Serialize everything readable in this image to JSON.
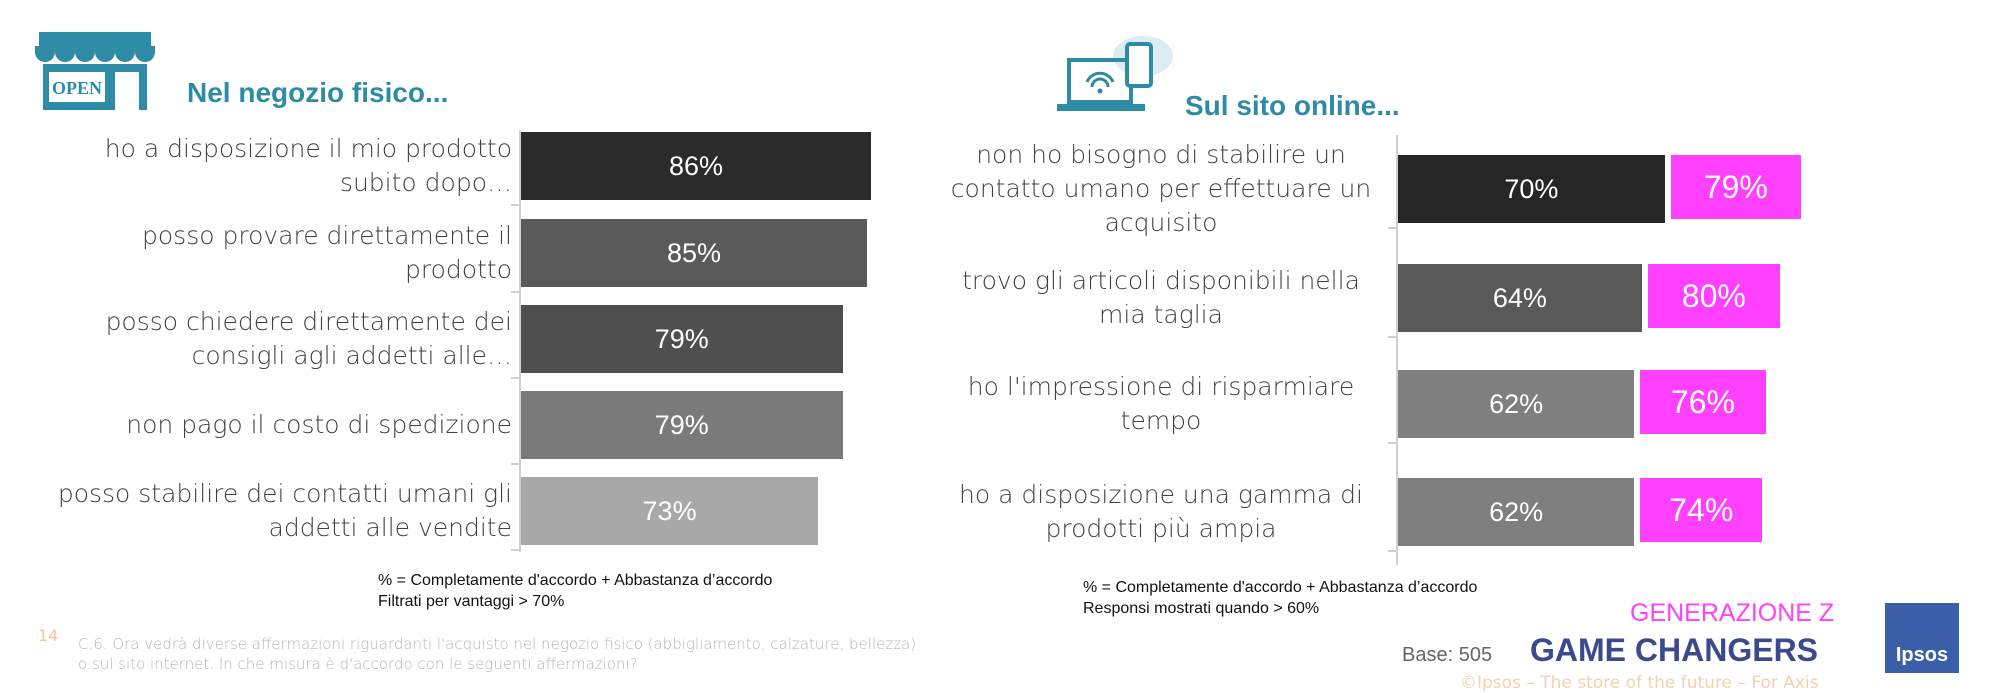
{
  "chart_data": [
    {
      "type": "bar",
      "orientation": "horizontal",
      "title": "Nel negozio fisico...",
      "categories": [
        "ho a disposizione il mio prodotto subito dopo…",
        "posso provare direttamente il prodotto",
        "posso chiedere direttamente dei consigli agli addetti alle…",
        "non pago il costo di spedizione",
        "posso stabilire dei contatti umani  gli addetti alle vendite"
      ],
      "values": [
        86,
        85,
        79,
        79,
        73
      ],
      "value_labels": [
        "86%",
        "85%",
        "79%",
        "79%",
        "73%"
      ],
      "colors": [
        "#2b2b2b",
        "#5a5a5a",
        "#4f4f4f",
        "#7a7a7a",
        "#a8a8a8"
      ],
      "footnote": [
        "% = Completamente d'accordo + Abbastanza d’accordo",
        "Filtrati per vantaggi > 70%"
      ]
    },
    {
      "type": "bar",
      "orientation": "horizontal",
      "title": "Sul sito online...",
      "categories": [
        "non ho bisogno di stabilire un contatto umano per effettuare un acquisito",
        "trovo gli articoli disponibili nella mia taglia",
        "ho l'impressione di risparmiare tempo",
        "ho a disposizione una gamma di prodotti più ampia"
      ],
      "series": [
        {
          "colors": [
            "#262626",
            "#595959",
            "#7f7f7f",
            "#7f7f7f"
          ],
          "values": [
            70,
            64,
            62,
            62
          ],
          "value_labels": [
            "70%",
            "64%",
            "62%",
            "62%"
          ]
        },
        {
          "color": "#ff40ff",
          "values": [
            79,
            80,
            76,
            74
          ],
          "value_labels": [
            "79%",
            "80%",
            "76%",
            "74%"
          ]
        }
      ],
      "footnote": [
        "% = Completamente d'accordo + Abbastanza d’accordo",
        "Responsi mostrati quando > 60%"
      ]
    }
  ],
  "page_number": "14",
  "question": "C.6. Ora vedrà diverse affermazioni riguardanti l'acquisto nel negozio fisico (abbigliamento, calzature, bellezza) o sul sito internet.  In che misura è d'accordo con le seguenti affermazioni?",
  "base": "Base: 505",
  "brand_top": "GENERAZIONE Z",
  "brand_main": "GAME CHANGERS",
  "logo": "Ipsos",
  "copyright": "©Ipsos – The store of the future – For Axis"
}
